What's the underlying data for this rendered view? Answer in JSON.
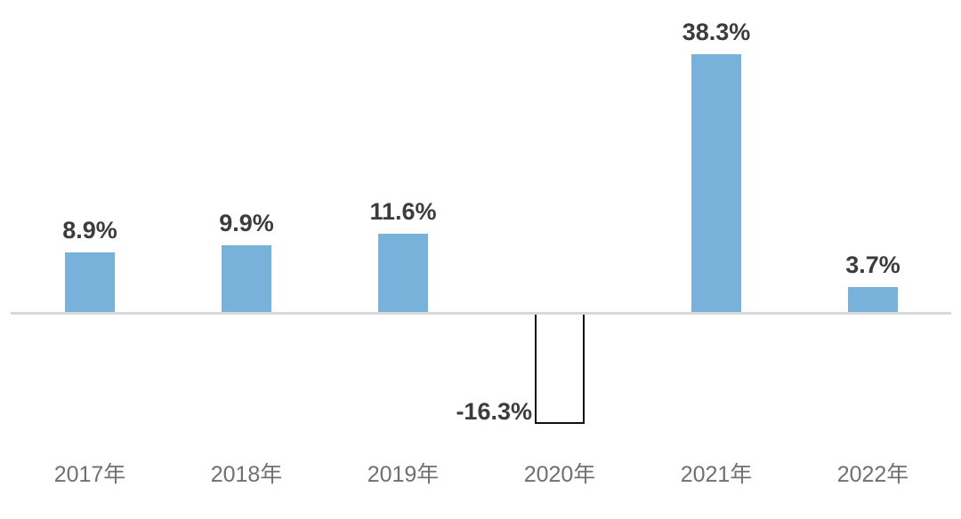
{
  "chart_data": {
    "type": "bar",
    "title": "",
    "categories": [
      "2017年",
      "2018年",
      "2019年",
      "2020年",
      "2021年",
      "2022年"
    ],
    "values": [
      8.9,
      9.9,
      11.6,
      -16.3,
      38.3,
      3.7
    ],
    "value_labels": [
      "8.9%",
      "9.9%",
      "11.6%",
      "-16.3%",
      "38.3%",
      "3.7%"
    ],
    "unit": "%",
    "ylim": [
      -20,
      42
    ],
    "grid": false,
    "legend": null,
    "xlabel": "",
    "ylabel": "",
    "colors": {
      "positive_bar": "#78b2db",
      "negative_bar_fill": "#ffffff",
      "negative_bar_border": "#111111",
      "value_label": "#3c3c3c",
      "axis_label": "#707070",
      "baseline": "#d9d9d9",
      "background": "#ffffff"
    }
  }
}
